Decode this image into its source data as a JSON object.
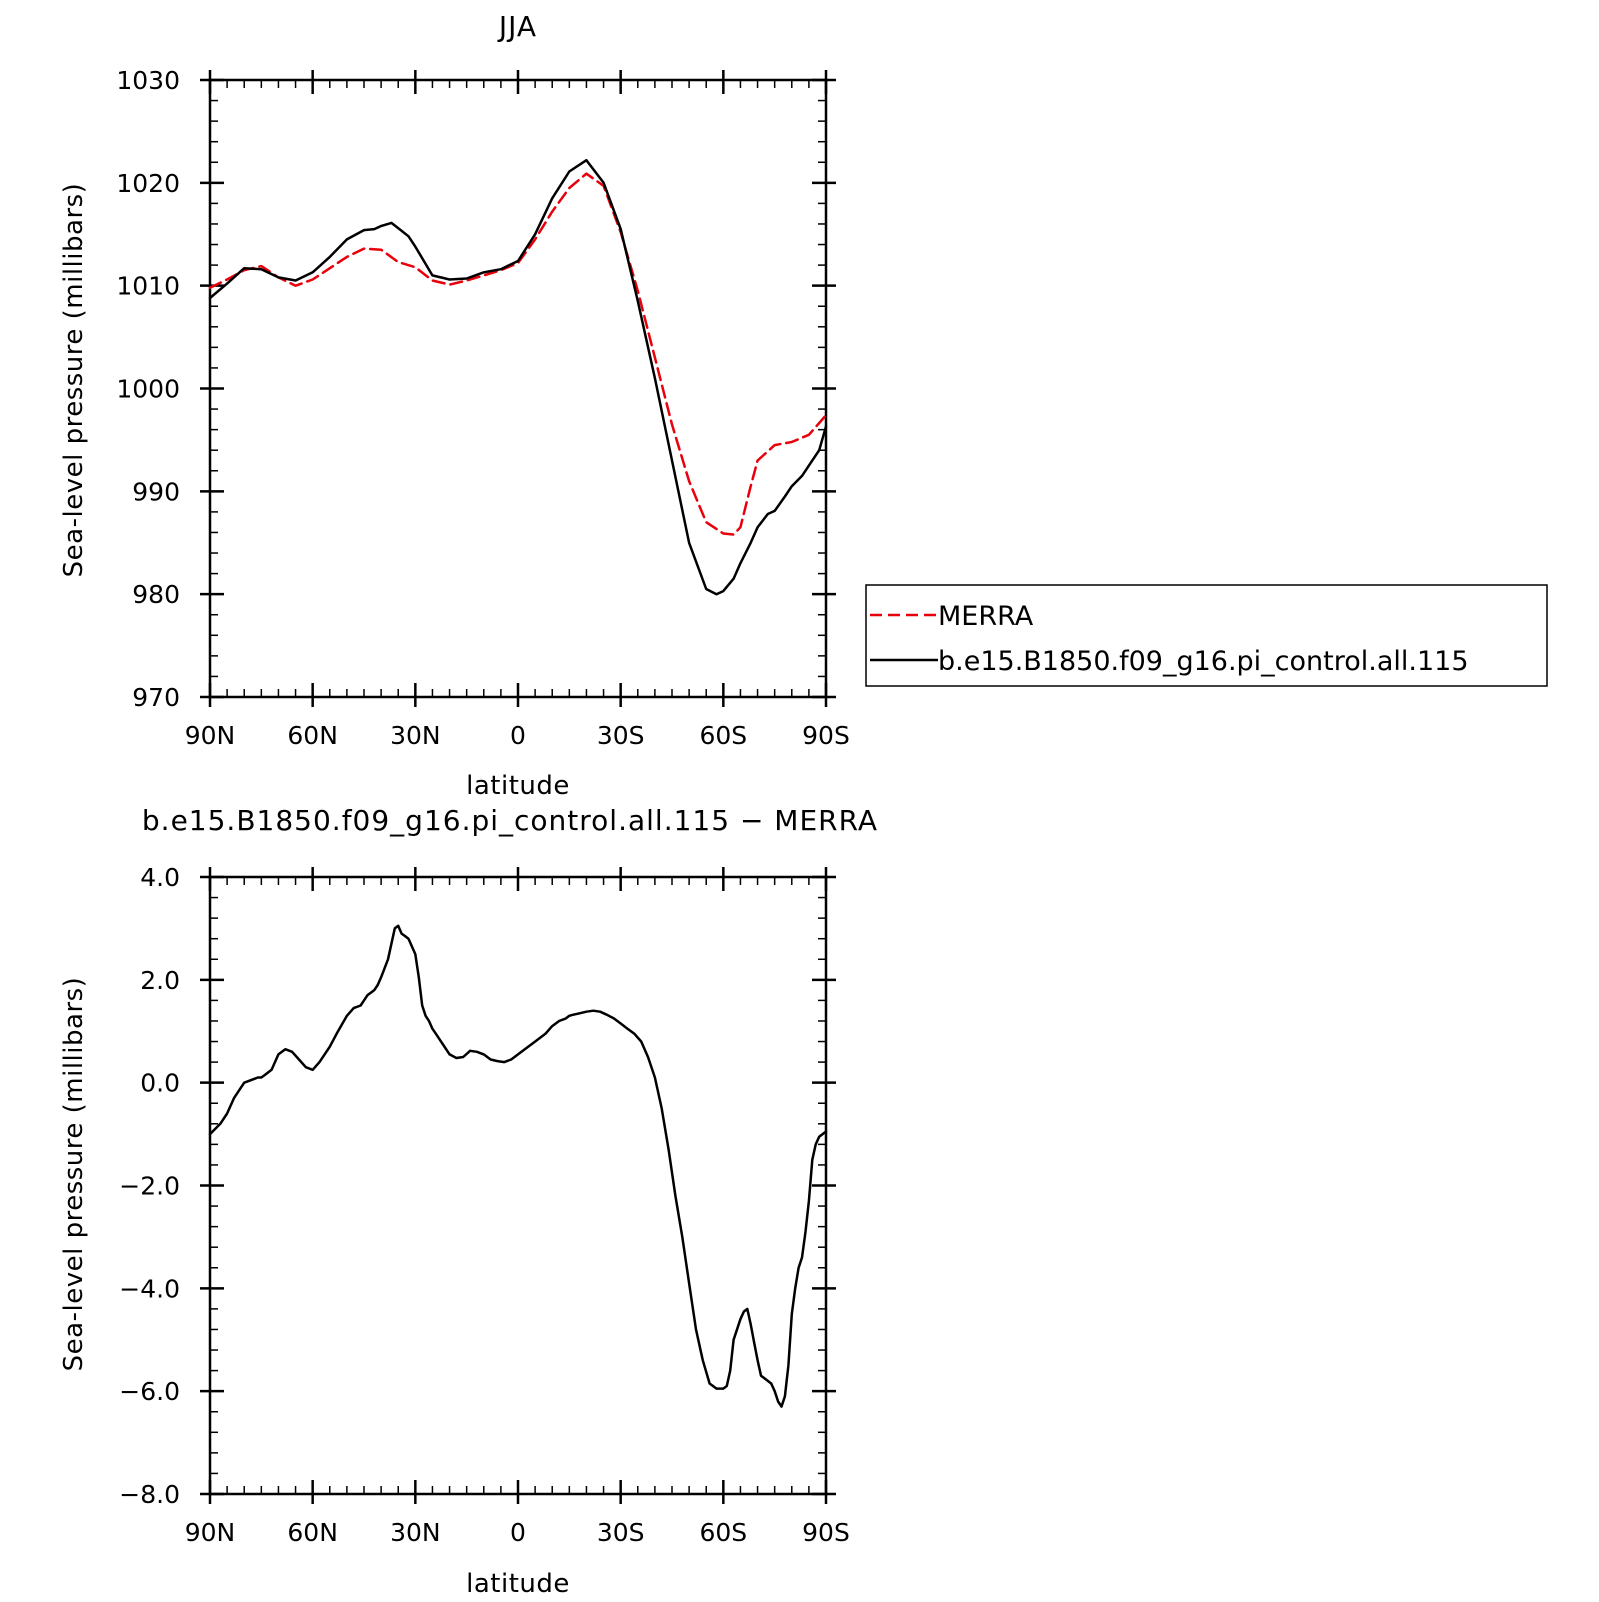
{
  "colors": {
    "model": "#000000",
    "merra": "#e8000b",
    "frame": "#000000",
    "background": "#ffffff"
  },
  "chart_data": [
    {
      "type": "line",
      "title": "JJA",
      "xlabel": "latitude",
      "ylabel": "Sea-level pressure (millibars)",
      "xlim": [
        90,
        -90
      ],
      "ylim": [
        970,
        1030
      ],
      "xticks": [
        90,
        60,
        30,
        0,
        -30,
        -60,
        -90
      ],
      "xtick_labels": [
        "90N",
        "60N",
        "30N",
        "0",
        "30S",
        "60S",
        "90S"
      ],
      "yticks": [
        970,
        980,
        990,
        1000,
        1010,
        1020,
        1030
      ],
      "ytick_labels": [
        "970",
        "980",
        "990",
        "1000",
        "1010",
        "1020",
        "1030"
      ],
      "legend": {
        "placement": "right",
        "entries": [
          "MERRA",
          "b.e15.B1850.f09_g16.pi_control.all.115"
        ]
      },
      "series": [
        {
          "name": "MERRA",
          "style": "dashed",
          "color": "#e8000b",
          "x": [
            90,
            85,
            80,
            75,
            70,
            65,
            60,
            55,
            50,
            45,
            40,
            35,
            30,
            25,
            20,
            15,
            10,
            5,
            0,
            -5,
            -10,
            -15,
            -20,
            -25,
            -30,
            -35,
            -40,
            -45,
            -50,
            -55,
            -60,
            -63,
            -65,
            -68,
            -70,
            -75,
            -80,
            -85,
            -90
          ],
          "y": [
            1009.8,
            1010.6,
            1011.5,
            1011.9,
            1010.8,
            1010.0,
            1010.6,
            1011.7,
            1012.8,
            1013.6,
            1013.5,
            1012.3,
            1011.8,
            1010.5,
            1010.1,
            1010.5,
            1011.0,
            1011.5,
            1012.2,
            1014.5,
            1017.2,
            1019.5,
            1020.9,
            1019.7,
            1015.2,
            1009.5,
            1003.0,
            996.5,
            991.0,
            987.0,
            985.9,
            985.8,
            986.5,
            990.5,
            993.0,
            994.5,
            994.8,
            995.5,
            997.4
          ]
        },
        {
          "name": "b.e15.B1850.f09_g16.pi_control.all.115",
          "style": "solid",
          "color": "#000000",
          "x": [
            90,
            85,
            80,
            75,
            70,
            65,
            60,
            55,
            50,
            45,
            42,
            40,
            37,
            35,
            32,
            30,
            25,
            20,
            15,
            10,
            5,
            0,
            -5,
            -10,
            -15,
            -20,
            -25,
            -30,
            -35,
            -40,
            -45,
            -50,
            -55,
            -58,
            -60,
            -63,
            -65,
            -68,
            -70,
            -73,
            -75,
            -78,
            -80,
            -83,
            -85,
            -88,
            -90
          ],
          "y": [
            1008.8,
            1010.2,
            1011.7,
            1011.6,
            1010.8,
            1010.5,
            1011.3,
            1012.8,
            1014.5,
            1015.4,
            1015.5,
            1015.8,
            1016.1,
            1015.6,
            1014.8,
            1013.8,
            1011.0,
            1010.6,
            1010.7,
            1011.3,
            1011.6,
            1012.4,
            1015.0,
            1018.5,
            1021.1,
            1022.2,
            1020.0,
            1015.5,
            1008.5,
            1001.0,
            993.0,
            985.0,
            980.5,
            980.0,
            980.3,
            981.5,
            983.0,
            985.0,
            986.5,
            987.8,
            988.1,
            989.5,
            990.5,
            991.5,
            992.5,
            994.0,
            996.3
          ]
        }
      ]
    },
    {
      "type": "line",
      "title": "b.e15.B1850.f09_g16.pi_control.all.115 − MERRA",
      "xlabel": "latitude",
      "ylabel": "Sea-level pressure (millibars)",
      "xlim": [
        90,
        -90
      ],
      "ylim": [
        -8.0,
        4.0
      ],
      "xticks": [
        90,
        60,
        30,
        0,
        -30,
        -60,
        -90
      ],
      "xtick_labels": [
        "90N",
        "60N",
        "30N",
        "0",
        "30S",
        "60S",
        "90S"
      ],
      "yticks": [
        -8,
        -6,
        -4,
        -2,
        0,
        2,
        4
      ],
      "ytick_labels": [
        "−8.0",
        "−6.0",
        "−4.0",
        "−2.0",
        "0.0",
        "2.0",
        "4.0"
      ],
      "series": [
        {
          "style": "solid",
          "color": "#000000",
          "x": [
            90,
            87,
            85,
            83,
            80,
            78,
            76,
            75,
            74,
            72,
            70,
            68,
            66,
            64,
            62,
            60,
            58,
            55,
            53,
            50,
            48,
            46,
            45,
            44,
            42,
            41,
            40,
            38,
            37,
            36,
            35,
            34,
            33,
            32,
            30,
            29,
            28,
            27,
            26,
            25,
            24,
            22,
            20,
            18,
            16,
            14,
            12,
            10,
            8,
            6,
            4,
            2,
            0,
            -2,
            -4,
            -6,
            -8,
            -10,
            -12,
            -14,
            -15,
            -16,
            -18,
            -20,
            -22,
            -24,
            -26,
            -28,
            -30,
            -32,
            -34,
            -36,
            -38,
            -40,
            -42,
            -44,
            -46,
            -48,
            -50,
            -52,
            -54,
            -56,
            -58,
            -60,
            -61,
            -62,
            -63,
            -65,
            -66,
            -67,
            -68,
            -69,
            -70,
            -71,
            -72,
            -73,
            -74,
            -75,
            -76,
            -77,
            -78,
            -79,
            -80,
            -81,
            -82,
            -83,
            -84,
            -85,
            -86,
            -87,
            -88,
            -89,
            -90
          ],
          "y": [
            -1.0,
            -0.8,
            -0.6,
            -0.3,
            0.0,
            0.05,
            0.1,
            0.1,
            0.15,
            0.25,
            0.55,
            0.65,
            0.6,
            0.45,
            0.3,
            0.25,
            0.4,
            0.7,
            0.95,
            1.3,
            1.45,
            1.5,
            1.6,
            1.7,
            1.8,
            1.9,
            2.05,
            2.4,
            2.7,
            3.0,
            3.05,
            2.9,
            2.85,
            2.8,
            2.5,
            2.05,
            1.5,
            1.3,
            1.2,
            1.05,
            0.95,
            0.75,
            0.55,
            0.48,
            0.5,
            0.62,
            0.6,
            0.55,
            0.45,
            0.42,
            0.4,
            0.45,
            0.55,
            0.65,
            0.75,
            0.85,
            0.95,
            1.1,
            1.2,
            1.25,
            1.3,
            1.32,
            1.35,
            1.38,
            1.4,
            1.38,
            1.32,
            1.25,
            1.15,
            1.05,
            0.95,
            0.8,
            0.5,
            0.1,
            -0.5,
            -1.3,
            -2.2,
            -3.0,
            -3.9,
            -4.8,
            -5.4,
            -5.85,
            -5.95,
            -5.95,
            -5.9,
            -5.6,
            -5.0,
            -4.6,
            -4.45,
            -4.4,
            -4.7,
            -5.05,
            -5.4,
            -5.7,
            -5.75,
            -5.8,
            -5.85,
            -6.0,
            -6.2,
            -6.3,
            -6.1,
            -5.5,
            -4.5,
            -4.0,
            -3.6,
            -3.4,
            -2.9,
            -2.3,
            -1.5,
            -1.2,
            -1.05,
            -1.0,
            -0.95
          ]
        }
      ]
    }
  ]
}
